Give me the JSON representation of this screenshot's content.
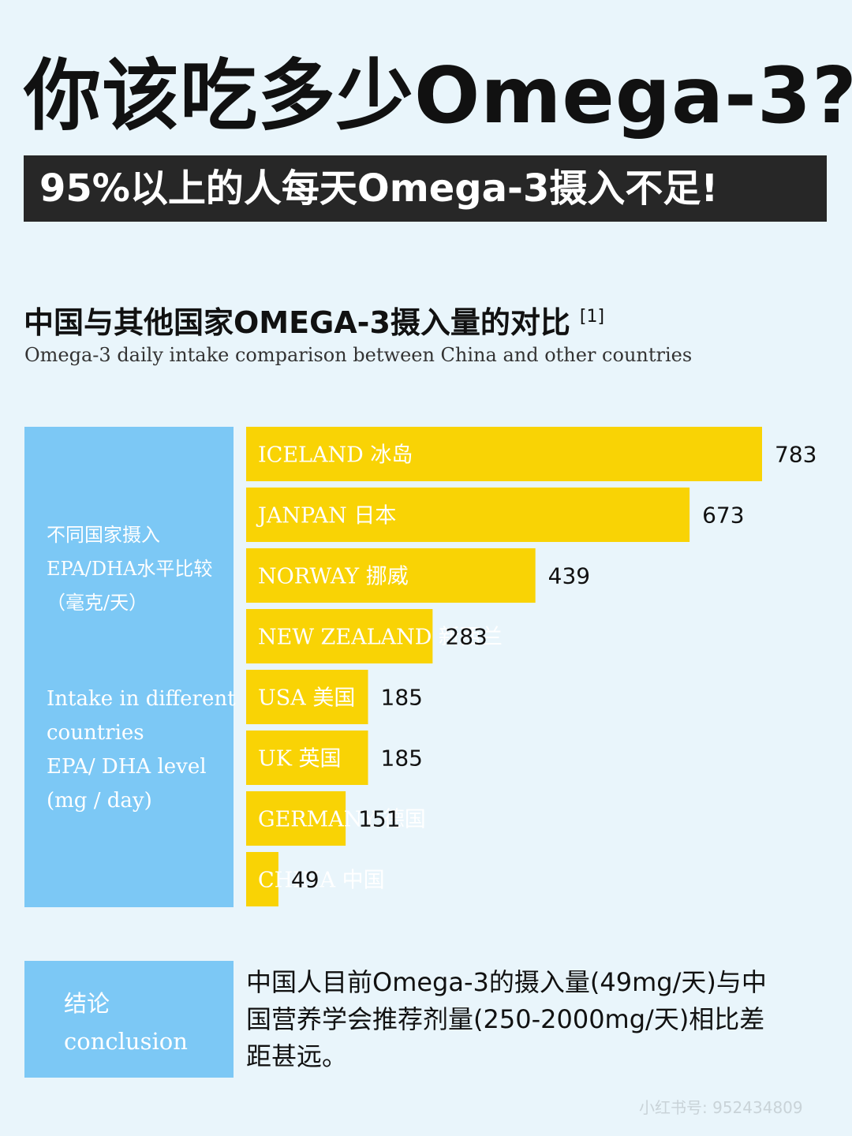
{
  "headline": "你该吃多少Omega-3?",
  "subheadline": "95%以上的人每天Omega-3摄入不足!",
  "chart_title": "中国与其他国家OMEGA-3摄入量的对比",
  "chart_ref": "[1]",
  "chart_subtitle": "Omega-3 daily intake comparison between China and other countries",
  "side_panel": {
    "cn_lines": [
      "不同国家摄入",
      "EPA/DHA水平比较",
      "（毫克/天）"
    ],
    "en_lines": [
      "Intake in different",
      "countries",
      "EPA/ DHA level",
      "(mg / day)"
    ]
  },
  "chart_data": {
    "type": "bar",
    "orientation": "horizontal",
    "categories": [
      "ICELAND 冰岛",
      "JANPAN 日本",
      "NORWAY 挪威",
      "NEW ZEALAND 新西兰",
      "USA 美国",
      "UK 英国",
      "GERMANY 德国",
      "CHINA 中国"
    ],
    "values": [
      783,
      673,
      439,
      283,
      185,
      185,
      151,
      49
    ],
    "value_labels": [
      "783",
      "673",
      "439",
      "283",
      "185",
      "185",
      "151",
      "49"
    ],
    "unit": "mg/day",
    "bar_color": "#f9d305"
  },
  "conclusion": {
    "label_cn": "结论",
    "label_en": "conclusion",
    "text_lines": [
      "中国人目前Omega-3的摄入量(49mg/天)与中",
      "国营养学会推荐剂量(250-2000mg/天)相比差",
      "距甚远。"
    ]
  },
  "watermark": "小红书号: 952434809",
  "colors": {
    "background": "#e9f5fb",
    "panel_blue": "#7cc8f5",
    "bar_yellow": "#f9d305",
    "banner_dark": "#272727"
  }
}
